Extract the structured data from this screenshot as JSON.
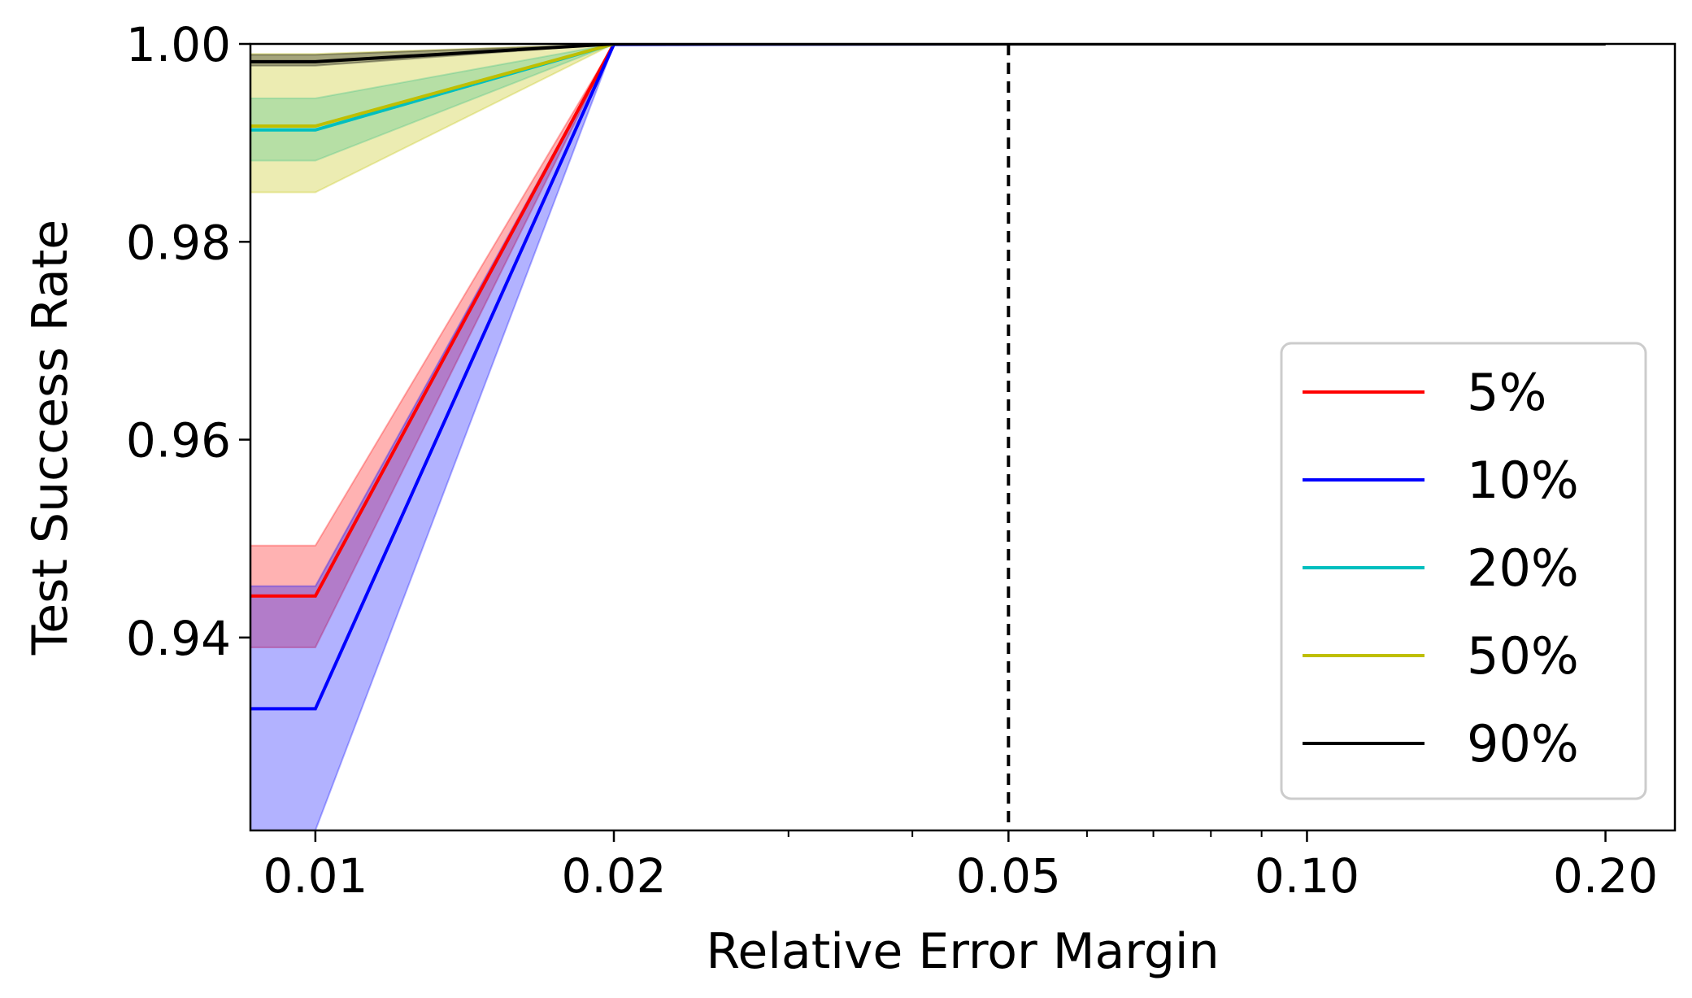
{
  "chart_data": {
    "type": "line",
    "title": "",
    "xlabel": "Relative Error Margin",
    "ylabel": "Test Success Rate",
    "x_scale": "log",
    "x_ticks": [
      {
        "value": 0.01,
        "label": "0.01"
      },
      {
        "value": 0.02,
        "label": "0.02"
      },
      {
        "value": 0.05,
        "label": "0.05"
      },
      {
        "value": 0.1,
        "label": "0.10"
      },
      {
        "value": 0.2,
        "label": "0.20"
      }
    ],
    "y_ticks": [
      {
        "value": 0.94,
        "label": "0.94"
      },
      {
        "value": 0.96,
        "label": "0.96"
      },
      {
        "value": 0.98,
        "label": "0.98"
      },
      {
        "value": 1.0,
        "label": "1.00"
      }
    ],
    "xlim": [
      0.0086,
      0.235
    ],
    "ylim": [
      0.9205,
      1.0
    ],
    "grid": false,
    "legend_position": "lower-right",
    "reference_line": {
      "x": 0.05,
      "style": "dashed",
      "color": "#000000"
    },
    "x": [
      0.0086,
      0.01,
      0.02,
      0.05,
      0.1,
      0.2
    ],
    "series": [
      {
        "name": "5%",
        "color": "#ff0000",
        "values": [
          0.9442,
          0.9442,
          1.0,
          1.0,
          1.0,
          1.0
        ],
        "lower": [
          0.939,
          0.939,
          1.0,
          1.0,
          1.0,
          1.0
        ],
        "upper": [
          0.9493,
          0.9493,
          1.0,
          1.0,
          1.0,
          1.0
        ]
      },
      {
        "name": "10%",
        "color": "#0000ff",
        "values": [
          0.9328,
          0.9328,
          0.99995,
          1.0,
          1.0,
          1.0
        ],
        "lower": [
          0.9205,
          0.9205,
          0.9999,
          1.0,
          1.0,
          1.0
        ],
        "upper": [
          0.9452,
          0.9452,
          1.0,
          1.0,
          1.0,
          1.0
        ]
      },
      {
        "name": "20%",
        "color": "#00bfbf",
        "values": [
          0.9913,
          0.9913,
          1.0,
          1.0,
          1.0,
          1.0
        ],
        "lower": [
          0.9882,
          0.9882,
          1.0,
          1.0,
          1.0,
          1.0
        ],
        "upper": [
          0.9945,
          0.9945,
          1.0,
          1.0,
          1.0,
          1.0
        ]
      },
      {
        "name": "50%",
        "color": "#bfbf00",
        "values": [
          0.9917,
          0.9917,
          1.0,
          1.0,
          1.0,
          1.0
        ],
        "lower": [
          0.985,
          0.985,
          1.0,
          1.0,
          1.0,
          1.0
        ],
        "upper": [
          0.999,
          0.999,
          1.0,
          1.0,
          1.0,
          1.0
        ]
      },
      {
        "name": "90%",
        "color": "#000000",
        "values": [
          0.9982,
          0.9982,
          1.0,
          1.0,
          1.0,
          1.0
        ],
        "lower": [
          0.9978,
          0.9978,
          1.0,
          1.0,
          1.0,
          1.0
        ],
        "upper": [
          0.9989,
          0.9989,
          1.0,
          1.0,
          1.0,
          1.0
        ]
      }
    ]
  }
}
